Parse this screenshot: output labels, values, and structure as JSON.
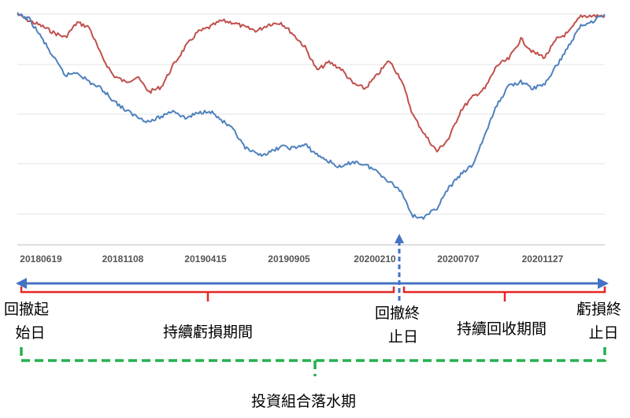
{
  "chart_data": {
    "type": "line",
    "title": "",
    "xlabel": "",
    "ylabel": "",
    "x_ticks": [
      "20180619",
      "20181108",
      "20190415",
      "20190905",
      "20200210",
      "20200707",
      "20201127"
    ],
    "grid": "horizontal",
    "series": [
      {
        "color": "#c0504d",
        "values": [
          0.1,
          0.5,
          0.8,
          1.2,
          1.5,
          0.6,
          0.9,
          2.6,
          3.8,
          4.2,
          3.9,
          4.8,
          4.5,
          3.2,
          2.1,
          1.2,
          0.9,
          0.5,
          0.6,
          0.9,
          1.1,
          0.7,
          0.6,
          1.3,
          2.1,
          3.5,
          3.0,
          3.4,
          4.3,
          4.6,
          3.8,
          2.9,
          4.0,
          6.2,
          7.4,
          8.4,
          7.6,
          5.9,
          5.1,
          4.6,
          3.2,
          2.8,
          1.6,
          2.4,
          2.7,
          1.6,
          1.2,
          0.2,
          0.2,
          0.2
        ]
      },
      {
        "color": "#4f81bd",
        "values": [
          0.1,
          0.4,
          1.5,
          2.7,
          3.8,
          3.6,
          4.2,
          4.6,
          5.3,
          5.9,
          6.3,
          6.6,
          6.3,
          5.9,
          6.4,
          6.1,
          5.9,
          6.5,
          7.1,
          8.2,
          8.6,
          8.5,
          8.1,
          8.2,
          8.0,
          8.6,
          9.0,
          9.4,
          9.0,
          9.2,
          9.6,
          10.2,
          10.8,
          12.3,
          12.4,
          11.8,
          10.6,
          9.8,
          9.2,
          7.4,
          5.6,
          4.4,
          4.2,
          4.6,
          4.3,
          3.2,
          2.0,
          0.8,
          0.5,
          0.1
        ]
      }
    ]
  },
  "annotations": {
    "drawdown_start": [
      "回撤起",
      "始日"
    ],
    "drawdown_end": [
      "回撤終",
      "止日"
    ],
    "loss_end": [
      "虧損終",
      "止日"
    ],
    "continued_loss": "持續虧損期間",
    "recovery": "持續回收期間",
    "underwater": "投資組合落水期"
  }
}
